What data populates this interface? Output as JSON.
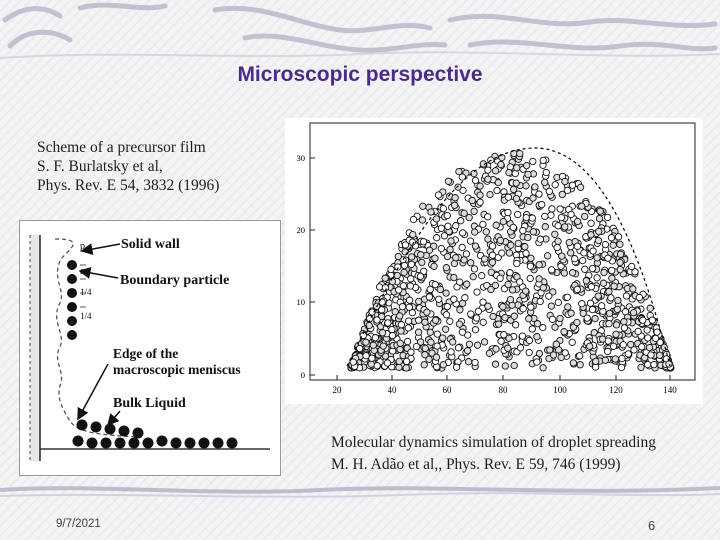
{
  "slide": {
    "title": "Microscopic perspective",
    "left_caption": {
      "line1": "Scheme of a precursor film",
      "line2": "S. F. Burlatsky et al,",
      "line3": "Phys. Rev. E 54, 3832 (1996)"
    },
    "right_caption": {
      "line1": "Molecular dynamics simulation of droplet spreading",
      "line2": "M. H. Adão et al,, Phys. Rev. E 59, 746 (1999)"
    },
    "footer": {
      "date": "9/7/2021",
      "page": "6"
    }
  },
  "scheme_figure": {
    "labels": {
      "solid_wall": "Solid wall",
      "boundary_particle": "Boundary particle",
      "edge_line1": "Edge of the",
      "edge_line2": "macroscopic meniscus",
      "bulk_liquid": "Bulk Liquid"
    },
    "dims": {
      "p": "p",
      "a": "a",
      "q1": "1/4",
      "q2": "1/4"
    }
  },
  "simulation_plot": {
    "x_ticks": [
      "20",
      "40",
      "60",
      "80",
      "100",
      "120",
      "140"
    ],
    "y_ticks": [
      "0",
      "10",
      "20",
      "30"
    ]
  }
}
